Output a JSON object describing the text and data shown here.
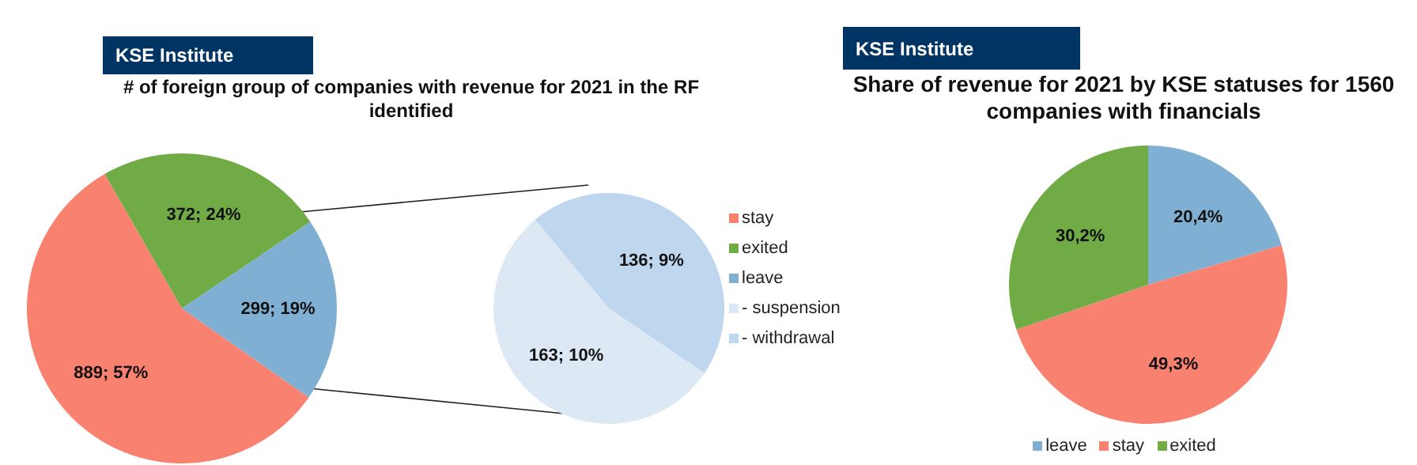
{
  "chart_data": [
    {
      "type": "pie",
      "title": "# of foreign group of companies with revenue for 2021 in the RF identified",
      "annotations": [
        "KSE Institute"
      ],
      "categories": [
        "stay",
        "exited",
        "leave"
      ],
      "values": [
        889,
        372,
        299
      ],
      "colors": [
        "#f88170",
        "#71ab46",
        "#80afd4"
      ],
      "value_labels": [
        "889; 57%",
        "372; 24%",
        "299; 19%"
      ],
      "legend": "right"
    },
    {
      "type": "pie",
      "categories": [
        "- suspension",
        "- withdrawal"
      ],
      "values": [
        163,
        136
      ],
      "colors": [
        "#dde8f5",
        "#bfd7ee"
      ],
      "value_labels": [
        "163; 10%",
        "136; 9%"
      ],
      "legend": "right"
    },
    {
      "type": "pie",
      "title": "Share of revenue for 2021 by KSE statuses for 1560 companies with financials",
      "annotations": [
        "KSE Institute"
      ],
      "categories": [
        "leave",
        "stay",
        "exited"
      ],
      "values": [
        20.4,
        49.3,
        30.2
      ],
      "colors": [
        "#80afd4",
        "#f88170",
        "#71ab46"
      ],
      "value_labels": [
        "20,4%",
        "49,3%",
        "30,2%"
      ],
      "legend": "bottom"
    }
  ]
}
